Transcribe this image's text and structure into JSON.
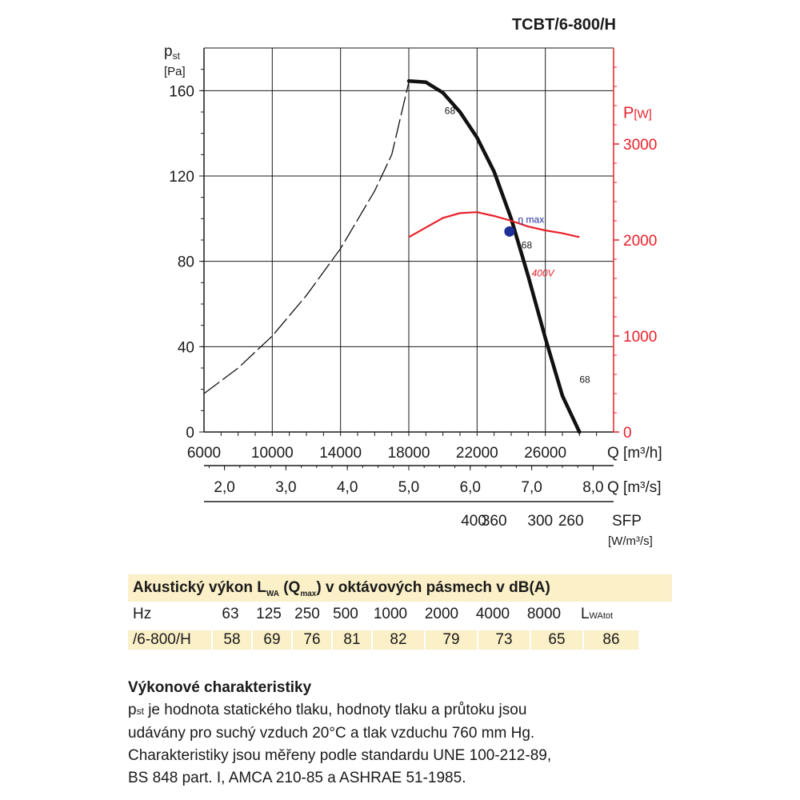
{
  "header": {
    "model": "TCBT/6-800/H"
  },
  "chart_data": {
    "type": "line",
    "title": "TCBT/6-800/H",
    "x_axis": {
      "label": "Q [m³/h]",
      "range": [
        6000,
        30000
      ],
      "ticks": [
        "6000",
        "10000",
        "14000",
        "18000",
        "22000",
        "26000"
      ]
    },
    "x_axis_secondary": {
      "label": "Q [m³/s]",
      "ticks": [
        {
          "x": 2.0,
          "label": "2,0"
        },
        {
          "x": 3.0,
          "label": "3,0"
        },
        {
          "x": 4.0,
          "label": "4,0"
        },
        {
          "x": 5.0,
          "label": "5,0"
        },
        {
          "x": 6.0,
          "label": "6,0"
        },
        {
          "x": 7.0,
          "label": "7,0"
        },
        {
          "x": 8.0,
          "label": "8,0"
        }
      ]
    },
    "x_axis_sfp": {
      "label": "SFP",
      "unit": "[W/m³/s]",
      "ticks": [
        {
          "q": 21800,
          "label": "400"
        },
        {
          "q": 23000,
          "label": "360"
        },
        {
          "q": 25700,
          "label": "300"
        },
        {
          "q": 27500,
          "label": "260"
        }
      ]
    },
    "y_axis_left": {
      "label_main": "p",
      "label_sub": "st",
      "unit": "[Pa]",
      "range": [
        0,
        180
      ],
      "ticks": [
        "0",
        "40",
        "80",
        "120",
        "160"
      ]
    },
    "y_axis_right": {
      "label_main": "P",
      "unit": "[W]",
      "range": [
        0,
        4000
      ],
      "ticks": [
        "0",
        "1000",
        "2000",
        "3000"
      ],
      "color": "#e8202a"
    },
    "series": [
      {
        "name": "pressure",
        "style": "solid",
        "color": "#111111",
        "points": [
          [
            18000,
            164.5
          ],
          [
            19000,
            164
          ],
          [
            20000,
            159
          ],
          [
            21000,
            150
          ],
          [
            22000,
            138
          ],
          [
            23000,
            122
          ],
          [
            24000,
            100
          ],
          [
            25000,
            73
          ],
          [
            26000,
            44
          ],
          [
            27000,
            17
          ],
          [
            28000,
            0
          ]
        ]
      },
      {
        "name": "stall-region",
        "style": "dashed",
        "color": "#111111",
        "points": [
          [
            6000,
            18
          ],
          [
            8000,
            30
          ],
          [
            10000,
            45
          ],
          [
            12000,
            64
          ],
          [
            14000,
            86
          ],
          [
            16000,
            113
          ],
          [
            17000,
            130
          ],
          [
            18000,
            164
          ]
        ]
      },
      {
        "name": "400V",
        "axis": "right",
        "style": "solid",
        "color": "#e8202a",
        "points": [
          [
            18000,
            2030
          ],
          [
            19000,
            2130
          ],
          [
            20000,
            2230
          ],
          [
            21000,
            2280
          ],
          [
            22000,
            2290
          ],
          [
            23000,
            2250
          ],
          [
            24000,
            2200
          ],
          [
            25000,
            2140
          ],
          [
            26000,
            2100
          ],
          [
            27000,
            2070
          ],
          [
            28000,
            2030
          ]
        ]
      }
    ],
    "annotations": [
      {
        "text": "68",
        "q": 20100,
        "p": 149
      },
      {
        "text": "68",
        "q": 24600,
        "p": 86
      },
      {
        "text": "68",
        "q": 28000,
        "p": 23
      },
      {
        "text": "η max",
        "q": 24400,
        "p": 98
      },
      {
        "text": "400V",
        "q": 25200,
        "p": 73
      }
    ],
    "eta_max_point": {
      "q": 23900,
      "p": 94
    }
  },
  "acoustic": {
    "title_pre": "Akustický výkon L",
    "title_sub1": "WA",
    "title_mid": " (Q",
    "title_sub2": "max",
    "title_post": ") v oktávových pásmech v dB(A)",
    "hz_label": "Hz",
    "bands": [
      "63",
      "125",
      "250",
      "500",
      "1000",
      "2000",
      "4000",
      "8000"
    ],
    "total_main": "L",
    "total_sub": "WAtot",
    "row_label": "/6-800/H",
    "values": [
      "58",
      "69",
      "76",
      "81",
      "82",
      "79",
      "73",
      "65",
      "86"
    ]
  },
  "performance": {
    "title": "Výkonové charakteristiky",
    "p_main": "p",
    "p_sub": "st",
    "line1_rest": " je hodnota statického tlaku, hodnoty tlaku a průtoku jsou",
    "line2": "udávány pro suchý vzduch 20°C a tlak vzduchu 760 mm Hg.",
    "line3": "Charakteristiky jsou měřeny podle standardu UNE 100-212-89,",
    "line4": "BS 848 part. I, AMCA 210-85 a ASHRAE 51-1985."
  }
}
